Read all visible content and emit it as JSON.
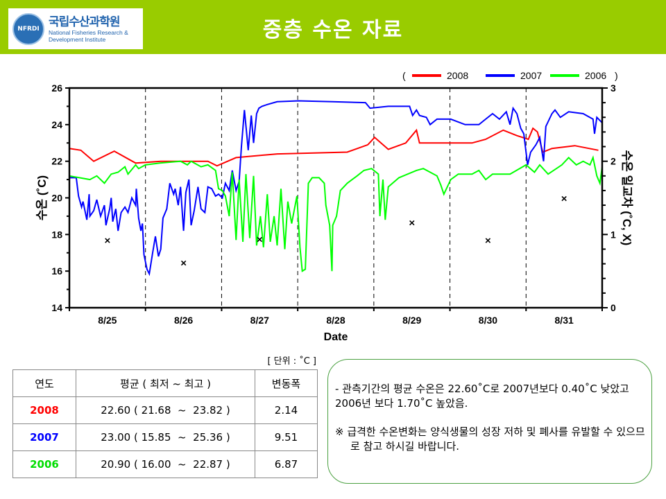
{
  "header": {
    "title": "중층 수온 자료",
    "logo": {
      "seal": "NFRDI",
      "ko": "국립수산과학원",
      "en1": "National Fisheries Research &",
      "en2": "Development Institute"
    }
  },
  "colors": {
    "header": "#99cc00",
    "y2008": "#ff0000",
    "y2007": "#0000ff",
    "y2006": "#00ff00"
  },
  "chart_data": {
    "type": "line",
    "xlabel": "Date",
    "ylabel": "수온 (˚C)",
    "y2label": "수온 일교차 (˚C, X)",
    "xticks": [
      "8/25",
      "8/26",
      "8/27",
      "8/28",
      "8/29",
      "8/30",
      "8/31"
    ],
    "xlim": [
      0,
      7
    ],
    "ylim": [
      14,
      26
    ],
    "y2lim": [
      0,
      3
    ],
    "yticks": [
      "14",
      "16",
      "18",
      "20",
      "22",
      "24",
      "26"
    ],
    "y2ticks": [
      "0",
      "1",
      "2",
      "3"
    ],
    "legend": {
      "open": "(",
      "close": ")",
      "placement": "top-right"
    },
    "series": [
      {
        "name": "2008",
        "color": "#ff0000",
        "points": [
          [
            0,
            22.7
          ],
          [
            0.15,
            22.6
          ],
          [
            0.32,
            22.0
          ],
          [
            0.59,
            22.55
          ],
          [
            0.87,
            21.9
          ],
          [
            1.2,
            22.0
          ],
          [
            1.82,
            22.0
          ],
          [
            1.94,
            21.75
          ],
          [
            2.19,
            22.2
          ],
          [
            2.73,
            22.4
          ],
          [
            3.65,
            22.5
          ],
          [
            3.92,
            22.9
          ],
          [
            4.01,
            23.3
          ],
          [
            4.19,
            22.65
          ],
          [
            4.42,
            23.0
          ],
          [
            4.56,
            23.7
          ],
          [
            4.6,
            23.0
          ],
          [
            5.29,
            23.0
          ],
          [
            5.47,
            23.2
          ],
          [
            5.7,
            23.7
          ],
          [
            5.88,
            23.4
          ],
          [
            6.03,
            23.2
          ],
          [
            6.09,
            23.8
          ],
          [
            6.15,
            23.6
          ],
          [
            6.22,
            22.5
          ],
          [
            6.34,
            22.7
          ],
          [
            6.64,
            22.85
          ],
          [
            6.95,
            22.6
          ]
        ]
      },
      {
        "name": "2007",
        "color": "#0000ff",
        "points": [
          [
            0,
            21.1
          ],
          [
            0.09,
            21.1
          ],
          [
            0.12,
            20.1
          ],
          [
            0.16,
            19.5
          ],
          [
            0.18,
            19.8
          ],
          [
            0.23,
            18.8
          ],
          [
            0.26,
            20.2
          ],
          [
            0.27,
            19.0
          ],
          [
            0.32,
            19.3
          ],
          [
            0.36,
            19.9
          ],
          [
            0.41,
            19.0
          ],
          [
            0.46,
            19.6
          ],
          [
            0.48,
            18.5
          ],
          [
            0.53,
            19.4
          ],
          [
            0.55,
            20.0
          ],
          [
            0.57,
            18.7
          ],
          [
            0.61,
            19.4
          ],
          [
            0.64,
            18.2
          ],
          [
            0.68,
            19.2
          ],
          [
            0.73,
            19.5
          ],
          [
            0.77,
            19.2
          ],
          [
            0.82,
            20.0
          ],
          [
            0.87,
            19.6
          ],
          [
            0.88,
            20.5
          ],
          [
            0.91,
            18.9
          ],
          [
            0.94,
            18.2
          ],
          [
            0.96,
            18.6
          ],
          [
            0.98,
            16.9
          ],
          [
            1.02,
            16.1
          ],
          [
            1.05,
            15.85
          ],
          [
            1.09,
            16.9
          ],
          [
            1.13,
            17.9
          ],
          [
            1.17,
            16.8
          ],
          [
            1.2,
            17.2
          ],
          [
            1.23,
            18.9
          ],
          [
            1.28,
            19.4
          ],
          [
            1.32,
            20.8
          ],
          [
            1.37,
            20.2
          ],
          [
            1.39,
            20.5
          ],
          [
            1.43,
            19.6
          ],
          [
            1.46,
            20.6
          ],
          [
            1.5,
            18.2
          ],
          [
            1.53,
            20.3
          ],
          [
            1.57,
            21.0
          ],
          [
            1.6,
            18.5
          ],
          [
            1.64,
            19.3
          ],
          [
            1.69,
            20.6
          ],
          [
            1.73,
            19.4
          ],
          [
            1.78,
            19.2
          ],
          [
            1.82,
            20.6
          ],
          [
            1.87,
            20.5
          ],
          [
            1.92,
            20.1
          ],
          [
            1.96,
            20.2
          ],
          [
            2.01,
            20.0
          ],
          [
            2.05,
            20.8
          ],
          [
            2.1,
            20.4
          ],
          [
            2.14,
            21.5
          ],
          [
            2.19,
            20.4
          ],
          [
            2.23,
            20.9
          ],
          [
            2.26,
            22.8
          ],
          [
            2.3,
            24.8
          ],
          [
            2.33,
            23.5
          ],
          [
            2.35,
            22.6
          ],
          [
            2.39,
            24.5
          ],
          [
            2.42,
            23.0
          ],
          [
            2.46,
            24.6
          ],
          [
            2.49,
            24.9
          ],
          [
            2.53,
            25.0
          ],
          [
            2.6,
            25.1
          ],
          [
            2.73,
            25.25
          ],
          [
            3.01,
            25.3
          ],
          [
            3.46,
            25.25
          ],
          [
            3.89,
            25.2
          ],
          [
            3.95,
            24.9
          ],
          [
            4.19,
            25.0
          ],
          [
            4.47,
            25.0
          ],
          [
            4.51,
            24.5
          ],
          [
            4.56,
            24.8
          ],
          [
            4.6,
            24.5
          ],
          [
            4.69,
            24.4
          ],
          [
            4.74,
            24.0
          ],
          [
            4.83,
            24.3
          ],
          [
            5.01,
            24.3
          ],
          [
            5.2,
            24.0
          ],
          [
            5.38,
            24.0
          ],
          [
            5.47,
            24.3
          ],
          [
            5.56,
            24.6
          ],
          [
            5.65,
            24.3
          ],
          [
            5.74,
            24.7
          ],
          [
            5.79,
            24.0
          ],
          [
            5.83,
            24.9
          ],
          [
            5.88,
            24.6
          ],
          [
            5.93,
            23.8
          ],
          [
            5.97,
            23.5
          ],
          [
            6.02,
            21.8
          ],
          [
            6.06,
            22.5
          ],
          [
            6.13,
            22.9
          ],
          [
            6.18,
            23.3
          ],
          [
            6.23,
            22.0
          ],
          [
            6.26,
            23.9
          ],
          [
            6.34,
            24.6
          ],
          [
            6.38,
            24.8
          ],
          [
            6.45,
            24.4
          ],
          [
            6.56,
            24.7
          ],
          [
            6.75,
            24.6
          ],
          [
            6.88,
            24.3
          ],
          [
            6.9,
            23.5
          ],
          [
            6.93,
            24.4
          ],
          [
            7.0,
            24.1
          ]
        ]
      },
      {
        "name": "2006",
        "color": "#00ff00",
        "points": [
          [
            0,
            21.2
          ],
          [
            0.27,
            21.0
          ],
          [
            0.36,
            21.2
          ],
          [
            0.46,
            20.8
          ],
          [
            0.55,
            21.3
          ],
          [
            0.64,
            21.4
          ],
          [
            0.73,
            21.7
          ],
          [
            0.77,
            21.3
          ],
          [
            0.87,
            21.8
          ],
          [
            0.91,
            21.6
          ],
          [
            1.0,
            21.8
          ],
          [
            1.19,
            21.9
          ],
          [
            1.46,
            22.0
          ],
          [
            1.55,
            21.8
          ],
          [
            1.6,
            22.0
          ],
          [
            1.73,
            21.7
          ],
          [
            1.82,
            21.8
          ],
          [
            1.92,
            21.5
          ],
          [
            1.96,
            20.5
          ],
          [
            2.01,
            20.4
          ],
          [
            2.05,
            20.1
          ],
          [
            2.1,
            19.0
          ],
          [
            2.14,
            21.4
          ],
          [
            2.19,
            17.7
          ],
          [
            2.23,
            21.0
          ],
          [
            2.28,
            17.6
          ],
          [
            2.32,
            21.3
          ],
          [
            2.37,
            17.8
          ],
          [
            2.42,
            21.2
          ],
          [
            2.46,
            17.4
          ],
          [
            2.51,
            19.0
          ],
          [
            2.55,
            17.3
          ],
          [
            2.6,
            20.2
          ],
          [
            2.64,
            17.6
          ],
          [
            2.69,
            19.0
          ],
          [
            2.73,
            17.4
          ],
          [
            2.78,
            20.5
          ],
          [
            2.83,
            17.2
          ],
          [
            2.87,
            19.8
          ],
          [
            2.92,
            18.6
          ],
          [
            2.99,
            20.1
          ],
          [
            3.03,
            17.3
          ],
          [
            3.06,
            16.0
          ],
          [
            3.1,
            16.1
          ],
          [
            3.14,
            20.8
          ],
          [
            3.19,
            21.1
          ],
          [
            3.28,
            21.1
          ],
          [
            3.35,
            20.8
          ],
          [
            3.37,
            19.6
          ],
          [
            3.42,
            18.5
          ],
          [
            3.45,
            16.0
          ],
          [
            3.46,
            18.5
          ],
          [
            3.51,
            19.0
          ],
          [
            3.56,
            20.4
          ],
          [
            3.65,
            20.8
          ],
          [
            3.78,
            21.2
          ],
          [
            3.87,
            21.5
          ],
          [
            3.97,
            21.6
          ],
          [
            4.06,
            21.3
          ],
          [
            4.08,
            19.0
          ],
          [
            4.12,
            21.0
          ],
          [
            4.15,
            18.8
          ],
          [
            4.19,
            20.6
          ],
          [
            4.33,
            21.1
          ],
          [
            4.56,
            21.5
          ],
          [
            4.65,
            21.6
          ],
          [
            4.83,
            21.2
          ],
          [
            4.88,
            20.7
          ],
          [
            4.92,
            20.2
          ],
          [
            5.01,
            21.0
          ],
          [
            5.11,
            21.3
          ],
          [
            5.29,
            21.3
          ],
          [
            5.38,
            21.5
          ],
          [
            5.47,
            21.0
          ],
          [
            5.56,
            21.3
          ],
          [
            5.79,
            21.3
          ],
          [
            6.0,
            21.8
          ],
          [
            6.11,
            21.4
          ],
          [
            6.18,
            21.8
          ],
          [
            6.29,
            21.3
          ],
          [
            6.47,
            21.8
          ],
          [
            6.56,
            22.2
          ],
          [
            6.66,
            21.8
          ],
          [
            6.75,
            22.0
          ],
          [
            6.84,
            21.8
          ],
          [
            6.88,
            22.2
          ],
          [
            6.93,
            21.2
          ],
          [
            6.97,
            20.8
          ],
          [
            7.0,
            21.7
          ]
        ]
      }
    ],
    "daily_range_2008": {
      "axis": "right",
      "marker": "x",
      "points": [
        [
          0.5,
          0.92
        ],
        [
          1.5,
          0.61
        ],
        [
          2.5,
          0.93
        ],
        [
          4.5,
          1.16
        ],
        [
          5.5,
          0.92
        ],
        [
          6.5,
          1.49
        ]
      ]
    }
  },
  "table": {
    "unit": "[ 단위 : ˚C ]",
    "headers": [
      "연도",
      "평균 ( 최저 ~ 최고 )",
      "변동폭"
    ],
    "rows": [
      {
        "year": "2008",
        "color": "#ff0000",
        "stats": "22.60 ( 21.68  ~  23.82 )",
        "range": "2.14"
      },
      {
        "year": "2007",
        "color": "#0000ff",
        "stats": "23.00 ( 15.85  ~  25.36 )",
        "range": "9.51"
      },
      {
        "year": "2006",
        "color": "#00ff00",
        "stats": "20.90 ( 16.00  ~  22.87 )",
        "range": "6.87"
      }
    ]
  },
  "note": {
    "line1": "- 관측기간의 평균 수온은 22.60˚C로 2007년보다 0.40˚C 낮았고 2006년 보다 1.70˚C 높았음.",
    "line2": "※ 급격한 수온변화는 양식생물의 성장 저하 및 폐사를 유발할 수 있으므로 참고 하시길 바랍니다."
  }
}
